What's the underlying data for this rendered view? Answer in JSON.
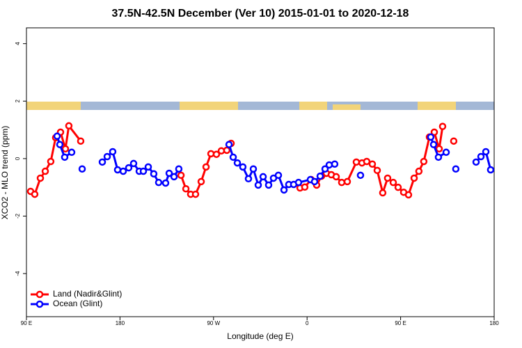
{
  "chart_data": {
    "type": "line",
    "title": "37.5N-42.5N December (Ver 10)   2015-01-01 to 2020-12-18",
    "x_label": "Longitude (deg E)",
    "y_label": "XCO2 - MLO trend (ppm)",
    "xlim": [
      90,
      540
    ],
    "ylim": [
      -5.5,
      4.55
    ],
    "xticks": [
      {
        "value": 90,
        "label": "90 E"
      },
      {
        "value": 180,
        "label": "180"
      },
      {
        "value": 270,
        "label": "90 W"
      },
      {
        "value": 360,
        "label": "0"
      },
      {
        "value": 450,
        "label": "90 E"
      },
      {
        "value": 540,
        "label": "180"
      }
    ],
    "yticks": [
      -4,
      -2,
      0,
      2,
      4
    ],
    "legend": "bottom-left",
    "series": [
      {
        "name": "Land (Nadir&Glint)",
        "color": "#ff0000",
        "x": [
          94.0,
          98.0,
          103.4,
          108.1,
          113.4,
          118.1,
          122.8,
          127.5,
          130.8,
          142.2,
          null,
          238.7,
          243.4,
          248.0,
          252.7,
          258.1,
          262.8,
          267.5,
          272.8,
          277.5,
          282.8,
          286.9,
          null,
          353.2,
          357.8,
          363.9,
          369.2,
          373.9,
          378.6,
          383.3,
          388.0,
          393.3,
          398.7,
          407.4,
          412.8,
          417.4,
          422.8,
          427.5,
          432.8,
          437.5,
          442.9,
          447.6,
          452.9,
          457.6,
          463.0,
          467.6,
          472.3,
          477.7,
          482.4,
          487.1,
          490.4,
          null,
          501.1
        ],
        "values": [
          -1.14,
          -1.24,
          -0.68,
          -0.44,
          -0.1,
          0.73,
          0.92,
          0.34,
          1.14,
          0.61,
          null,
          -0.58,
          -1.05,
          -1.24,
          -1.24,
          -0.8,
          -0.29,
          0.17,
          0.15,
          0.27,
          0.29,
          0.53,
          null,
          -1.02,
          -0.99,
          -0.73,
          -0.92,
          -0.61,
          -0.51,
          -0.56,
          -0.63,
          -0.83,
          -0.8,
          -0.12,
          -0.15,
          -0.1,
          -0.19,
          -0.41,
          -1.19,
          -0.68,
          -0.83,
          -1.0,
          -1.17,
          -1.26,
          -0.68,
          -0.44,
          -0.1,
          0.75,
          0.92,
          0.34,
          1.12,
          null,
          0.61
        ]
      },
      {
        "name": "Ocean (Glint)",
        "color": "#0000ff",
        "x": [
          119.5,
          122.1,
          126.8,
          133.5,
          null,
          143.6,
          null,
          163.0,
          167.7,
          173.0,
          177.7,
          183.1,
          188.4,
          193.1,
          198.5,
          202.5,
          207.2,
          212.5,
          217.2,
          223.9,
          227.3,
          232.0,
          236.6,
          null,
          284.9,
          288.9,
          292.9,
          298.2,
          303.6,
          308.3,
          313.0,
          317.7,
          323.0,
          327.7,
          332.4,
          337.8,
          342.4,
          347.1,
          351.8,
          363.2,
          367.2,
          372.6,
          377.3,
          381.3,
          386.6,
          null,
          411.4,
          null,
          479.0,
          481.7,
          486.4,
          493.8,
          null,
          503.1,
          null,
          522.6,
          527.3,
          532.0,
          536.6
        ],
        "values": [
          0.78,
          0.49,
          0.05,
          0.22,
          null,
          -0.36,
          null,
          -0.12,
          0.07,
          0.24,
          -0.39,
          -0.44,
          -0.32,
          -0.17,
          -0.44,
          -0.44,
          -0.29,
          -0.53,
          -0.83,
          -0.85,
          -0.51,
          -0.63,
          -0.36,
          null,
          0.49,
          0.05,
          -0.15,
          -0.29,
          -0.7,
          -0.36,
          -0.92,
          -0.63,
          -0.92,
          -0.68,
          -0.58,
          -1.09,
          -0.9,
          -0.9,
          -0.83,
          -0.73,
          -0.8,
          -0.61,
          -0.36,
          -0.22,
          -0.19,
          null,
          -0.58,
          null,
          0.75,
          0.49,
          0.05,
          0.22,
          null,
          -0.36,
          null,
          -0.12,
          0.07,
          0.24,
          -0.39
        ]
      }
    ]
  }
}
